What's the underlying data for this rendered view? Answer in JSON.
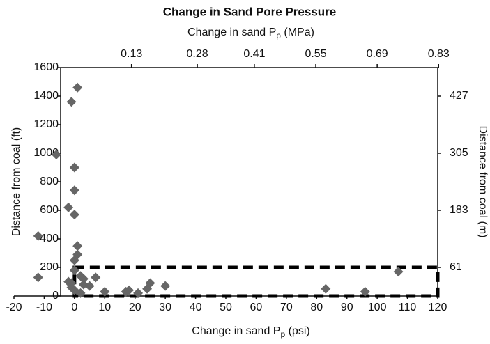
{
  "chart_data": {
    "type": "scatter",
    "title": "Change in Sand Pore Pressure",
    "x_label": "Change in sand Pp (psi)",
    "x_label_parts": [
      "Change in sand P",
      "p",
      " (psi)"
    ],
    "x2_label_parts": [
      "Change in sand P",
      "p",
      " (MPa)"
    ],
    "y_label": "Distance from coal (ft)",
    "y2_label": "Distance from coal (m)",
    "xlim": [
      -20,
      120
    ],
    "xticks": [
      -20,
      -10,
      0,
      10,
      20,
      30,
      40,
      50,
      60,
      70,
      80,
      90,
      100,
      110,
      120
    ],
    "ylim": [
      0,
      1600
    ],
    "yticks": [
      0,
      200,
      400,
      600,
      800,
      1000,
      1200,
      1400,
      1600
    ],
    "x2lim": [
      -0.138,
      0.828
    ],
    "x2ticks": [
      0.13,
      0.28,
      0.41,
      0.55,
      0.69,
      0.83
    ],
    "y2lim": [
      0,
      488
    ],
    "y2ticks": [
      61,
      183,
      305,
      427
    ],
    "color": "#666666",
    "x": [
      -12,
      -12,
      -6,
      -2,
      -1,
      0,
      0,
      0,
      1,
      0,
      1,
      1,
      0,
      -2,
      -1,
      0,
      2,
      3,
      3,
      5,
      7,
      10,
      17,
      18,
      21,
      24,
      25,
      30,
      83,
      96,
      107,
      -1,
      2
    ],
    "y": [
      420,
      130,
      990,
      620,
      1360,
      570,
      740,
      900,
      1460,
      250,
      350,
      290,
      180,
      100,
      60,
      40,
      140,
      80,
      120,
      70,
      130,
      30,
      30,
      40,
      20,
      50,
      90,
      70,
      50,
      30,
      170,
      90,
      20
    ],
    "region": {
      "x": [
        0,
        120
      ],
      "y": [
        0,
        200
      ]
    }
  }
}
